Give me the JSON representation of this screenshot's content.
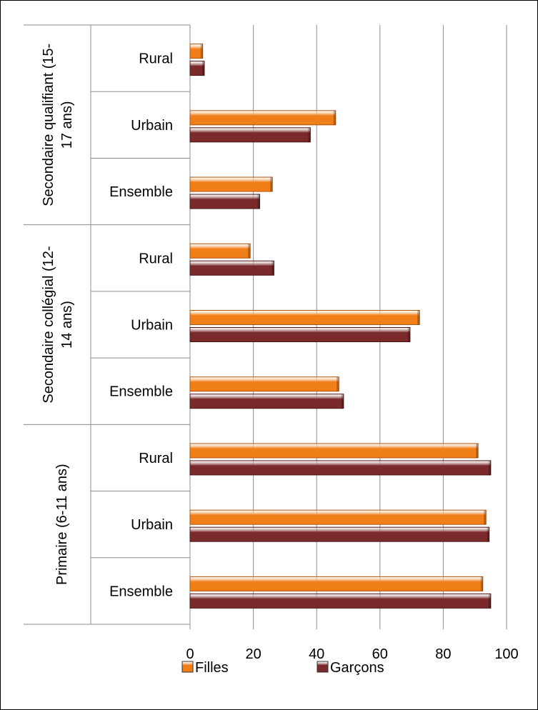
{
  "chart_data": {
    "type": "bar",
    "orientation": "horizontal",
    "xlim": [
      0,
      100
    ],
    "x_ticks": [
      "0",
      "20",
      "40",
      "60",
      "80",
      "100"
    ],
    "grid": true,
    "legend_position": "bottom",
    "groups": [
      {
        "label": "Primaire (6-11 ans)",
        "categories": [
          "Ensemble",
          "Urbain",
          "Rural"
        ]
      },
      {
        "label": "Secondaire collégial (12-14 ans)",
        "categories": [
          "Ensemble",
          "Urbain",
          "Rural"
        ]
      },
      {
        "label": "Secondaire qualifiant (15-17 ans)",
        "categories": [
          "Ensemble",
          "Urbain",
          "Rural"
        ]
      }
    ],
    "series": [
      {
        "name": "Filles",
        "color": "#F07F1A",
        "values": [
          92.5,
          93.5,
          91.0,
          47.0,
          72.5,
          19.0,
          26.0,
          46.0,
          4.0
        ]
      },
      {
        "name": "Garçons",
        "color": "#7A2A2A",
        "values": [
          95.0,
          94.5,
          95.0,
          48.5,
          69.5,
          26.5,
          22.0,
          38.0,
          4.5
        ]
      }
    ]
  }
}
